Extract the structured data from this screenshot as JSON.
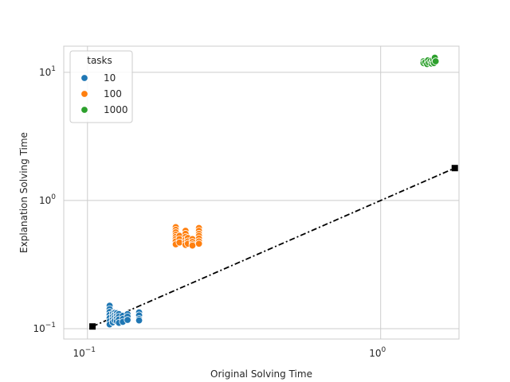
{
  "chart_data": {
    "type": "scatter",
    "title": "",
    "xlabel": "Original Solving Time",
    "ylabel": "Explanation Solving Time",
    "xscale": "log",
    "yscale": "log",
    "xlim": [
      0.083,
      1.85
    ],
    "ylim": [
      0.083,
      16.0
    ],
    "grid": true,
    "x_ticks": [
      {
        "value": 0.1,
        "base": "10",
        "exp": "−1"
      },
      {
        "value": 1,
        "base": "10",
        "exp": "0"
      }
    ],
    "y_ticks": [
      {
        "value": 0.1,
        "base": "10",
        "exp": "−1"
      },
      {
        "value": 1,
        "base": "10",
        "exp": "0"
      },
      {
        "value": 10,
        "base": "10",
        "exp": "1"
      }
    ],
    "legend": {
      "title": "tasks",
      "placement": "upper-left",
      "entries": [
        {
          "label": "10",
          "color": "#1f77b4"
        },
        {
          "label": "100",
          "color": "#ff7f0e"
        },
        {
          "label": "1000",
          "color": "#2ca02c"
        }
      ]
    },
    "series": [
      {
        "name": "10",
        "color": "#1f77b4",
        "points": [
          [
            0.119,
            0.151
          ],
          [
            0.119,
            0.142
          ],
          [
            0.119,
            0.135
          ],
          [
            0.119,
            0.128
          ],
          [
            0.119,
            0.121
          ],
          [
            0.119,
            0.114
          ],
          [
            0.119,
            0.108
          ],
          [
            0.122,
            0.131
          ],
          [
            0.122,
            0.124
          ],
          [
            0.122,
            0.118
          ],
          [
            0.122,
            0.112
          ],
          [
            0.124,
            0.133
          ],
          [
            0.124,
            0.128
          ],
          [
            0.124,
            0.122
          ],
          [
            0.124,
            0.116
          ],
          [
            0.126,
            0.132
          ],
          [
            0.126,
            0.126
          ],
          [
            0.126,
            0.12
          ],
          [
            0.126,
            0.114
          ],
          [
            0.128,
            0.13
          ],
          [
            0.128,
            0.124
          ],
          [
            0.128,
            0.118
          ],
          [
            0.128,
            0.111
          ],
          [
            0.132,
            0.126
          ],
          [
            0.132,
            0.119
          ],
          [
            0.132,
            0.113
          ],
          [
            0.137,
            0.13
          ],
          [
            0.137,
            0.124
          ],
          [
            0.137,
            0.117
          ],
          [
            0.15,
            0.134
          ],
          [
            0.15,
            0.127
          ],
          [
            0.15,
            0.119
          ],
          [
            0.15,
            0.116
          ]
        ]
      },
      {
        "name": "100",
        "color": "#ff7f0e",
        "points": [
          [
            0.2,
            0.62
          ],
          [
            0.2,
            0.59
          ],
          [
            0.2,
            0.565
          ],
          [
            0.2,
            0.54
          ],
          [
            0.2,
            0.52
          ],
          [
            0.2,
            0.5
          ],
          [
            0.2,
            0.48
          ],
          [
            0.2,
            0.455
          ],
          [
            0.206,
            0.53
          ],
          [
            0.206,
            0.5
          ],
          [
            0.206,
            0.47
          ],
          [
            0.216,
            0.58
          ],
          [
            0.216,
            0.55
          ],
          [
            0.216,
            0.52
          ],
          [
            0.216,
            0.495
          ],
          [
            0.216,
            0.47
          ],
          [
            0.216,
            0.45
          ],
          [
            0.22,
            0.51
          ],
          [
            0.22,
            0.48
          ],
          [
            0.22,
            0.46
          ],
          [
            0.228,
            0.5
          ],
          [
            0.228,
            0.475
          ],
          [
            0.228,
            0.455
          ],
          [
            0.228,
            0.445
          ],
          [
            0.24,
            0.61
          ],
          [
            0.24,
            0.58
          ],
          [
            0.24,
            0.55
          ],
          [
            0.24,
            0.53
          ],
          [
            0.24,
            0.505
          ],
          [
            0.24,
            0.48
          ],
          [
            0.24,
            0.46
          ]
        ]
      },
      {
        "name": "1000",
        "color": "#2ca02c",
        "points": [
          [
            1.4,
            12.2
          ],
          [
            1.4,
            11.8
          ],
          [
            1.42,
            12.0
          ],
          [
            1.44,
            11.6
          ],
          [
            1.45,
            12.4
          ],
          [
            1.46,
            11.9
          ],
          [
            1.48,
            12.3
          ],
          [
            1.49,
            11.7
          ],
          [
            1.5,
            12.1
          ],
          [
            1.51,
            12.5
          ],
          [
            1.52,
            11.8
          ],
          [
            1.53,
            13.0
          ],
          [
            1.54,
            12.2
          ]
        ]
      }
    ],
    "reference_line": {
      "style": "dash-dot",
      "color": "#000000",
      "marker": "square",
      "start": [
        0.104,
        0.104
      ],
      "end": [
        1.79,
        1.79
      ]
    }
  }
}
